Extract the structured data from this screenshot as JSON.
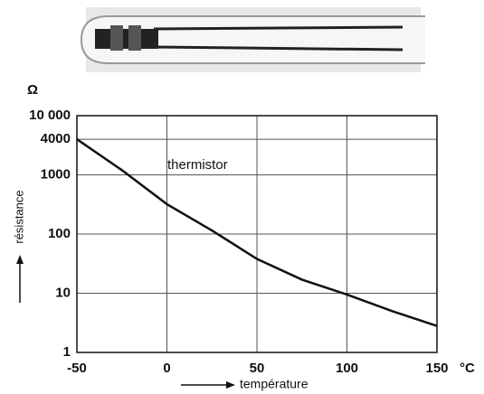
{
  "chart_data": {
    "type": "line",
    "y_unit": "Ω",
    "x_unit": "°C",
    "x_label": "température",
    "y_label": "résistance",
    "x": [
      -50,
      -25,
      0,
      25,
      50,
      75,
      100,
      125,
      150
    ],
    "series": [
      {
        "name": "thermistor",
        "color": "#111111",
        "values": [
          4000,
          1200,
          320,
          115,
          38,
          17,
          9.5,
          5,
          2.8
        ]
      }
    ],
    "xlim": [
      -50,
      150
    ],
    "xticks": [
      -50,
      0,
      50,
      100,
      150
    ],
    "ylim": [
      1,
      10000
    ],
    "log_y": true,
    "yticks": [
      1,
      10,
      100,
      1000,
      4000,
      {
        "value": 10000,
        "label": "10 000"
      }
    ],
    "grid": true
  }
}
